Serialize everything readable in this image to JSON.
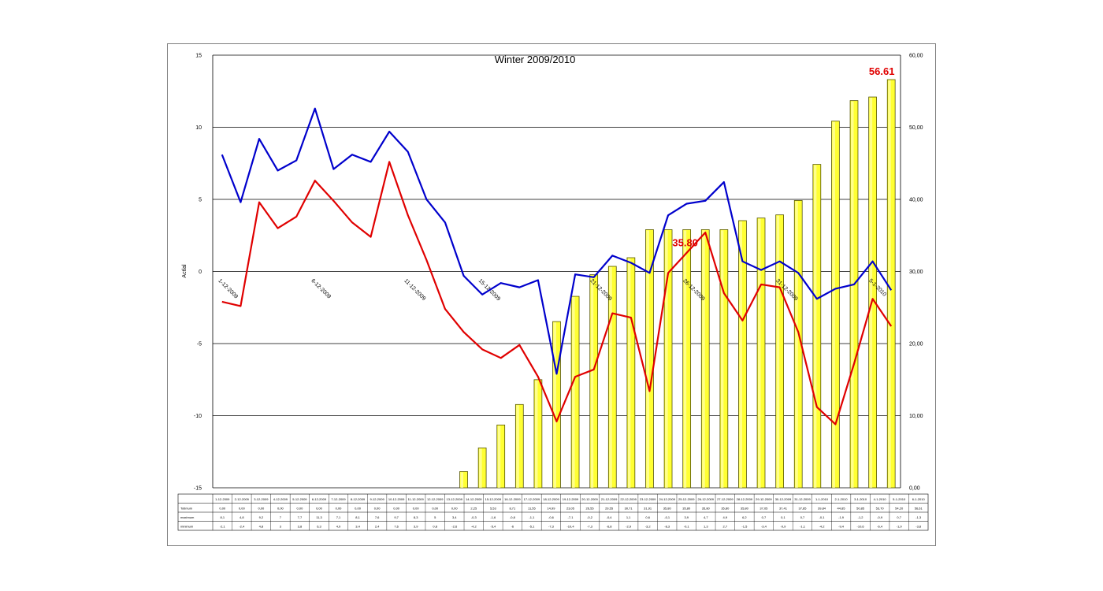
{
  "chart_data": {
    "type": "bar+line",
    "title": "Winter 2009/2010",
    "ylabel_left": "Actlal",
    "ylim_left": [
      -15,
      15
    ],
    "yticks_left": [
      "15",
      "10",
      "5",
      "0",
      "-5",
      "-10",
      "-15"
    ],
    "ylim_right": [
      0,
      60
    ],
    "yticks_right": [
      "60,00",
      "50,00",
      "40,00",
      "30,00",
      "20,00",
      "10,00",
      "0,00"
    ],
    "categories": [
      "1-12-2009",
      "2-12-2009",
      "3-12-2009",
      "4-12-2009",
      "5-12-2009",
      "6-12-2009",
      "7-12-2009",
      "8-12-2009",
      "9-12-2009",
      "10-12-2009",
      "11-12-2009",
      "12-12-2009",
      "13-12-2009",
      "14-12-2009",
      "15-12-2009",
      "16-12-2009",
      "17-12-2009",
      "18-12-2009",
      "19-12-2009",
      "20-12-2009",
      "21-12-2009",
      "22-12-2009",
      "23-12-2009",
      "24-12-2009",
      "25-12-2009",
      "26-12-2009",
      "27-12-2009",
      "28-12-2009",
      "29-12-2009",
      "30-12-2009",
      "31-12-2009",
      "1-1-2010",
      "2-1-2010",
      "3-1-2010",
      "4-1-2010",
      "5-1-2010",
      "6-1-2010"
    ],
    "date_labels": [
      "1-12-2009",
      "6-12-2009",
      "11-12-2009",
      "15-12-2009",
      "21-12-2009",
      "26-12-2009",
      "31-12-2009",
      "5-1-2010"
    ],
    "series": [
      {
        "name": "Totimum",
        "type": "bar",
        "axis": "right",
        "color": "#ffff33",
        "values": [
          0,
          0,
          0,
          0,
          0,
          0,
          0,
          0,
          0,
          0,
          0,
          0,
          0,
          2.25,
          5.53,
          8.71,
          11.55,
          14.99,
          23.05,
          26.55,
          29.55,
          30.71,
          31.91,
          35.8,
          35.8,
          35.8,
          35.8,
          35.8,
          37.05,
          37.41,
          37.85,
          39.84,
          44.85,
          50.85,
          53.7,
          54.2,
          56.61
        ]
      },
      {
        "name": "maximum",
        "type": "line",
        "axis": "left",
        "color": "#0000cc",
        "values": [
          8.1,
          4.8,
          9.2,
          7,
          7.7,
          11.3,
          7.1,
          8.1,
          7.6,
          9.7,
          8.3,
          5,
          3.4,
          -0.3,
          -1.6,
          -0.8,
          -1.1,
          -0.6,
          -7.1,
          -0.2,
          -0.4,
          1.1,
          0.6,
          -0.1,
          3.9,
          4.7,
          4.9,
          6.2,
          0.7,
          0.1,
          0.7,
          -0.1,
          -1.9,
          -1.2,
          -0.9,
          0.7,
          -1.3
        ]
      },
      {
        "name": "minimum",
        "type": "line",
        "axis": "left",
        "color": "#e00000",
        "values": [
          -2.1,
          -2.4,
          4.8,
          3,
          3.8,
          6.3,
          4.9,
          3.4,
          2.4,
          7.6,
          3.9,
          0.8,
          -2.6,
          -4.2,
          -5.4,
          -6,
          -5.1,
          -7.3,
          -10.4,
          -7.3,
          -6.8,
          -2.9,
          -3.2,
          -8.3,
          -0.1,
          1.3,
          2.7,
          -1.5,
          -3.4,
          -0.9,
          -1.1,
          -4.2,
          -9.4,
          -10.6,
          -6.4,
          -1.9,
          -3.8
        ]
      }
    ],
    "annotations": [
      {
        "text": "35.80",
        "series": "minimum",
        "index": 25
      },
      {
        "text": "56.61",
        "series": "Totimum",
        "index": 36
      }
    ],
    "table": {
      "row_labels": [
        "Totimum",
        "maximum",
        "minimum"
      ],
      "rows": [
        [
          "0,00",
          "0,00",
          "0,00",
          "0,00",
          "0,00",
          "0,00",
          "0,00",
          "0,00",
          "0,00",
          "0,00",
          "0,00",
          "0,00",
          "0,00",
          "2,25",
          "5,53",
          "8,71",
          "11,55",
          "14,99",
          "23,05",
          "26,55",
          "29,55",
          "30,71",
          "31,91",
          "35,80",
          "35,80",
          "35,80",
          "35,80",
          "35,80",
          "37,05",
          "37,41",
          "37,85",
          "39,84",
          "44,85",
          "50,85",
          "53,70",
          "54,20",
          "56,61"
        ],
        [
          "8,1",
          "4,8",
          "9,2",
          "7",
          "7,7",
          "11,3",
          "7,1",
          "8,1",
          "7,6",
          "9,7",
          "8,3",
          "5",
          "3,4",
          "-0,3",
          "-1,6",
          "-0,8",
          "-1,1",
          "-0,6",
          "-7,1",
          "-0,2",
          "-0,4",
          "1,1",
          "0,6",
          "-0,1",
          "3,9",
          "4,7",
          "4,9",
          "6,2",
          "0,7",
          "0,1",
          "0,7",
          "-0,1",
          "-1,9",
          "-1,2",
          "-0,9",
          "0,7",
          "-1,3"
        ],
        [
          "-2,1",
          "-2,4",
          "4,8",
          "3",
          "3,8",
          "6,3",
          "4,9",
          "3,4",
          "2,4",
          "7,6",
          "3,9",
          "0,8",
          "-2,6",
          "-4,2",
          "-5,4",
          "-6",
          "-5,1",
          "-7,3",
          "-10,4",
          "-7,3",
          "-6,8",
          "-2,9",
          "-3,2",
          "-8,3",
          "-0,1",
          "1,3",
          "2,7",
          "-1,5",
          "-3,4",
          "-0,9",
          "-1,1",
          "-4,2",
          "-9,4",
          "-10,6",
          "-6,4",
          "-1,9",
          "-3,8"
        ]
      ]
    },
    "grid": true,
    "legend": "none"
  }
}
